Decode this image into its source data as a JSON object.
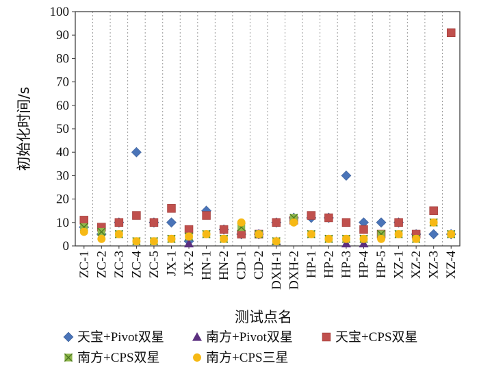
{
  "chart_data": {
    "type": "scatter",
    "title": "",
    "xlabel": "测试点名",
    "ylabel": "初始化时间/s",
    "ylim": [
      0,
      100
    ],
    "yticks": [
      0,
      10,
      20,
      30,
      40,
      50,
      60,
      70,
      80,
      90,
      100
    ],
    "grid": "vertical dotted",
    "legend_position": "bottom",
    "categories": [
      "ZC-1",
      "ZC-2",
      "ZC-3",
      "ZC-4",
      "ZC-5",
      "JX-1",
      "JX-2",
      "HN-1",
      "HN-2",
      "CD-1",
      "CD-2",
      "DXH-1",
      "DXH-2",
      "HP-1",
      "HP-2",
      "HP-3",
      "HP-4",
      "HP-5",
      "XZ-1",
      "XZ-2",
      "XZ-3",
      "XZ-4"
    ],
    "series": [
      {
        "name": "天宝+Pivot双星",
        "marker": "diamond",
        "color": "#4a74b8",
        "values": [
          8,
          5,
          10,
          40,
          10,
          10,
          2,
          15,
          7,
          5,
          5,
          10,
          12,
          12,
          12,
          30,
          10,
          10,
          10,
          5,
          5,
          5
        ]
      },
      {
        "name": "南方+Pivot双星",
        "marker": "triangle",
        "color": "#5b2f7f",
        "values": [
          null,
          null,
          null,
          null,
          null,
          null,
          1,
          null,
          null,
          null,
          null,
          2,
          null,
          null,
          null,
          1,
          1,
          null,
          null,
          null,
          null,
          null
        ]
      },
      {
        "name": "天宝+CPS双星",
        "marker": "square",
        "color": "#c0504d",
        "values": [
          11,
          8,
          10,
          13,
          10,
          16,
          7,
          13,
          7,
          5,
          5,
          10,
          11,
          13,
          12,
          10,
          7,
          5,
          10,
          5,
          15,
          91
        ]
      },
      {
        "name": "南方+CPS双星",
        "marker": "xbox",
        "color": "#8fb74c",
        "values": [
          8,
          6,
          5,
          2,
          2,
          3,
          4,
          5,
          3,
          8,
          5,
          2,
          12,
          5,
          3,
          3,
          3,
          5,
          5,
          3,
          10,
          5
        ]
      },
      {
        "name": "南方+CPS三星",
        "marker": "circle",
        "color": "#f6b915",
        "values": [
          6,
          3,
          5,
          2,
          2,
          3,
          4,
          5,
          3,
          10,
          5,
          2,
          10,
          5,
          3,
          3,
          3,
          3,
          5,
          3,
          10,
          5
        ]
      }
    ]
  }
}
